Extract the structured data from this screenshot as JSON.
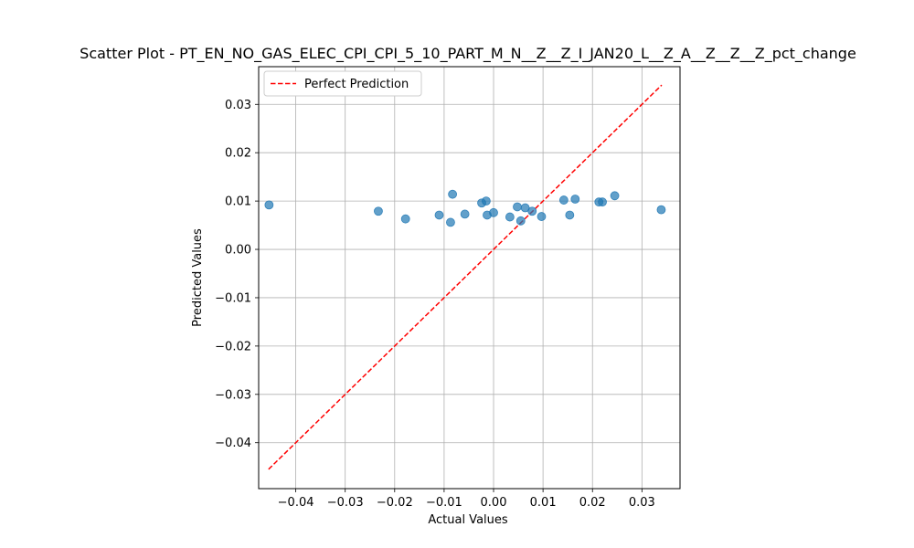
{
  "chart_data": {
    "type": "scatter",
    "title": "Scatter Plot - PT_EN_NO_GAS_ELEC_CPI_CPI_5_10_PART_M_N__Z__Z_I_JAN20_L__Z_A__Z__Z__Z_pct_change",
    "xlabel": "Actual Values",
    "ylabel": "Predicted Values",
    "xlim": [
      -0.0475,
      0.0377
    ],
    "ylim": [
      -0.0495,
      0.0378
    ],
    "xticks": [
      -0.04,
      -0.03,
      -0.02,
      -0.01,
      0.0,
      0.01,
      0.02,
      0.03
    ],
    "xtick_labels": [
      "−0.04",
      "−0.03",
      "−0.02",
      "−0.01",
      "0.00",
      "0.01",
      "0.02",
      "0.03"
    ],
    "yticks": [
      -0.04,
      -0.03,
      -0.02,
      -0.01,
      0.0,
      0.01,
      0.02,
      0.03
    ],
    "ytick_labels": [
      "−0.04",
      "−0.03",
      "−0.02",
      "−0.01",
      "0.00",
      "0.01",
      "0.02",
      "0.03"
    ],
    "grid": true,
    "legend": {
      "placement": "top-left",
      "entries": [
        "Perfect Prediction"
      ]
    },
    "point_color": "#1f77b4",
    "line_color": "#ff0000",
    "reference_line": {
      "name": "Perfect Prediction",
      "x": [
        -0.0455,
        0.034
      ],
      "y": [
        -0.0455,
        0.034
      ]
    },
    "points": [
      {
        "x": -0.0454,
        "y": 0.0092
      },
      {
        "x": -0.0233,
        "y": 0.0079
      },
      {
        "x": -0.0178,
        "y": 0.0063
      },
      {
        "x": -0.011,
        "y": 0.0071
      },
      {
        "x": -0.0087,
        "y": 0.0056
      },
      {
        "x": -0.0083,
        "y": 0.0114
      },
      {
        "x": -0.0058,
        "y": 0.0073
      },
      {
        "x": -0.0024,
        "y": 0.0096
      },
      {
        "x": -0.0015,
        "y": 0.01
      },
      {
        "x": -0.0013,
        "y": 0.0071
      },
      {
        "x": 0.0,
        "y": 0.0076
      },
      {
        "x": 0.0033,
        "y": 0.0067
      },
      {
        "x": 0.0048,
        "y": 0.0088
      },
      {
        "x": 0.0055,
        "y": 0.0059
      },
      {
        "x": 0.0064,
        "y": 0.0086
      },
      {
        "x": 0.0078,
        "y": 0.0079
      },
      {
        "x": 0.0097,
        "y": 0.0068
      },
      {
        "x": 0.0142,
        "y": 0.0102
      },
      {
        "x": 0.0154,
        "y": 0.0071
      },
      {
        "x": 0.0165,
        "y": 0.0104
      },
      {
        "x": 0.0213,
        "y": 0.0098
      },
      {
        "x": 0.022,
        "y": 0.0098
      },
      {
        "x": 0.0245,
        "y": 0.0111
      },
      {
        "x": 0.0339,
        "y": 0.0082
      }
    ]
  }
}
